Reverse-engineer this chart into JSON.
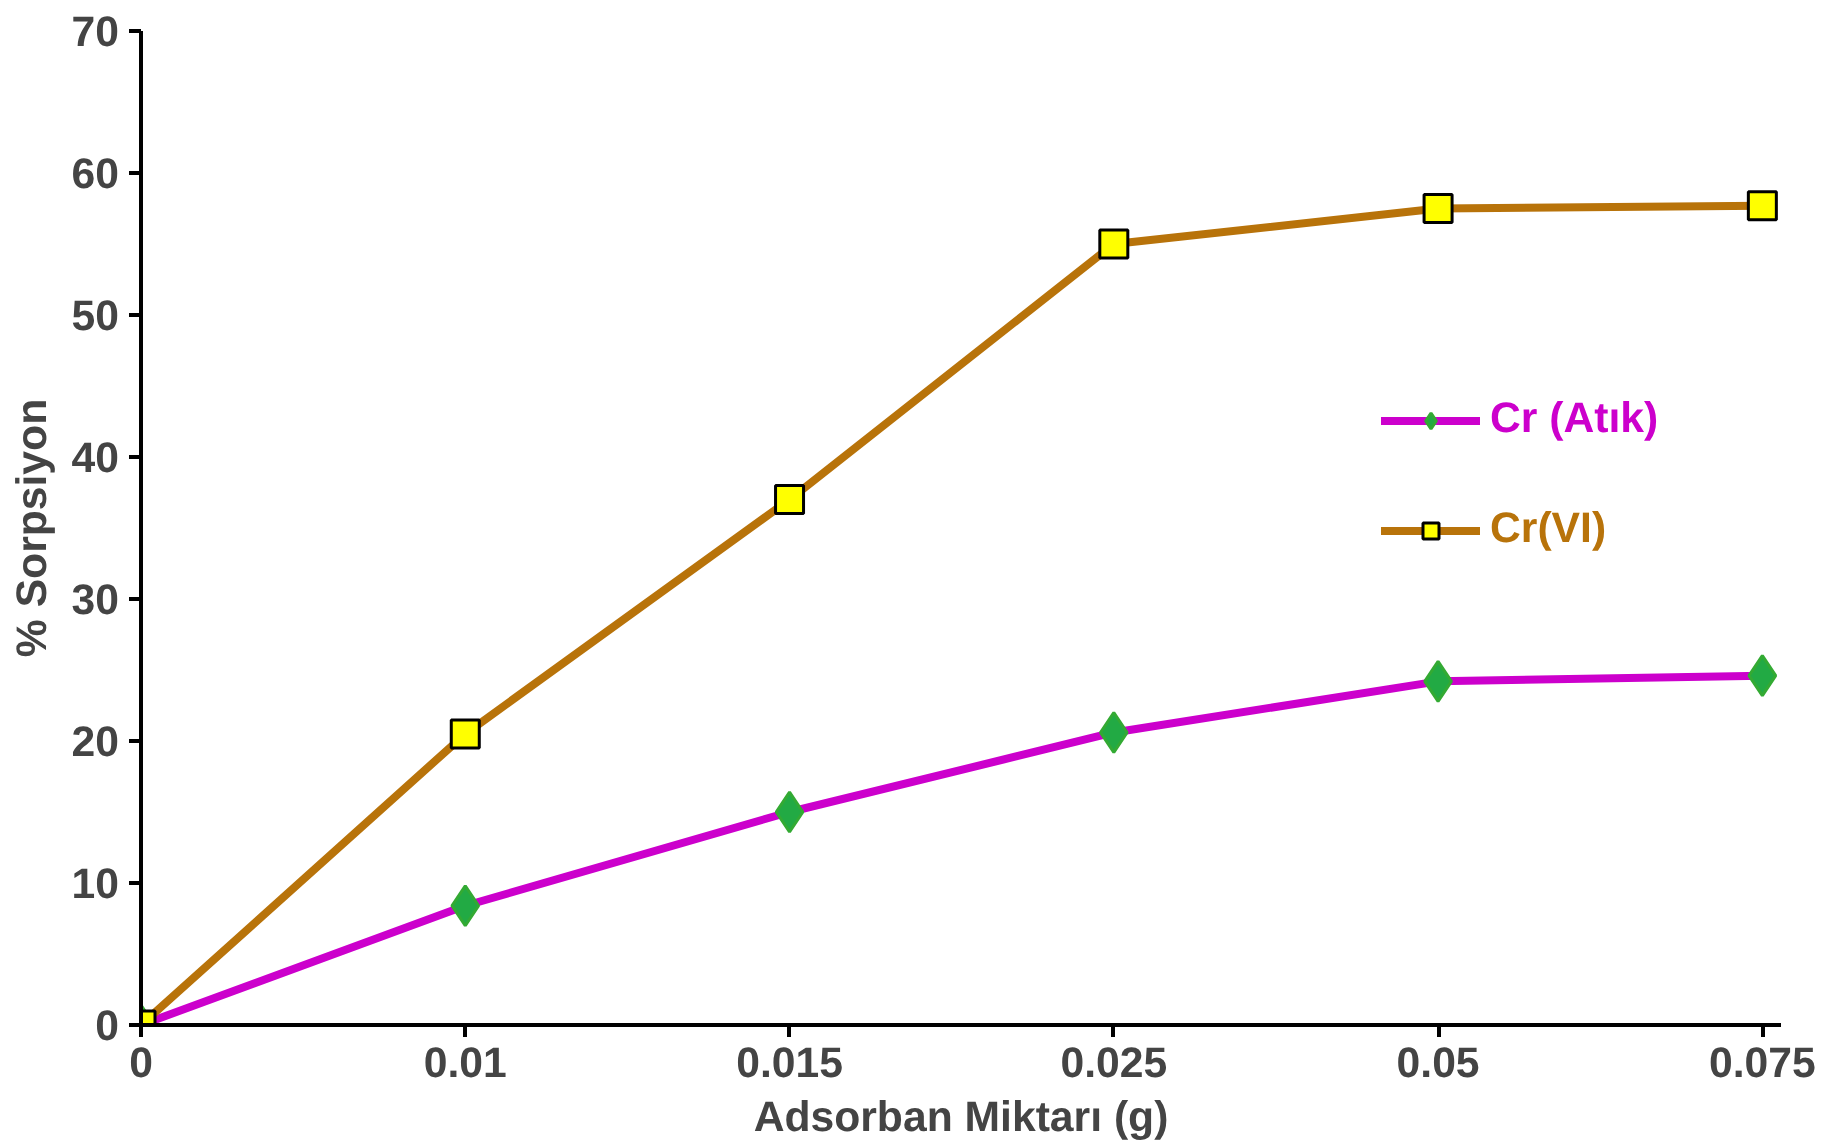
{
  "chart_data": {
    "type": "line",
    "xlabel": "Adsorban Miktarı (g)",
    "ylabel": "% Sorpsiyon",
    "categories": [
      "0",
      "0.01",
      "0.015",
      "0.025",
      "0.05",
      "0.075"
    ],
    "series": [
      {
        "name": "Cr (Atık)",
        "color": "#cc00cc",
        "marker": "diamond",
        "values": [
          0,
          8.4,
          15,
          20.6,
          24.2,
          24.6
        ]
      },
      {
        "name": "Cr(VI)",
        "color": "#b8730a",
        "marker": "square",
        "values": [
          0,
          20.5,
          37,
          55,
          57.5,
          57.7
        ]
      }
    ],
    "ylim": [
      0,
      70
    ],
    "yticks": [
      0,
      10,
      20,
      30,
      40,
      50,
      60,
      70
    ],
    "grid": false,
    "legend": "right",
    "line_style": "solid"
  }
}
